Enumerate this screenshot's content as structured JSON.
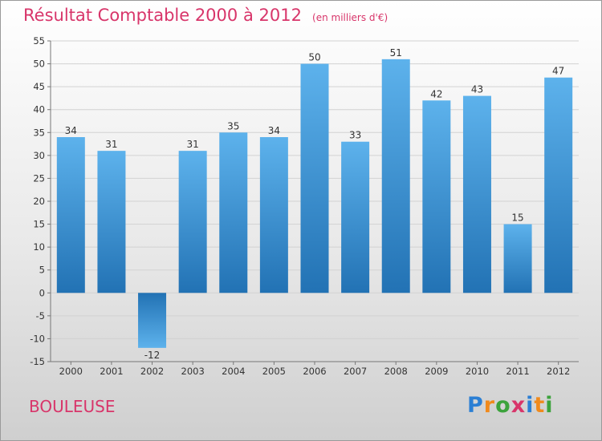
{
  "title": "Résultat Comptable 2000 à 2012",
  "unit": "(en milliers d'€)",
  "commune": "BOULEUSE",
  "logo": {
    "letters": [
      "P",
      "r",
      "o",
      "x",
      "i",
      "t",
      "i"
    ],
    "colors": [
      "#2b7fd4",
      "#f08a1c",
      "#3ca33c",
      "#d8356a",
      "#2b7fd4",
      "#f08a1c",
      "#3ca33c"
    ]
  },
  "colors": {
    "bar_top": "#5db2ec",
    "bar_bottom": "#2272b4",
    "accent": "#d8356a"
  },
  "chart_data": {
    "type": "bar",
    "title": "Résultat Comptable 2000 à 2012",
    "xlabel": "",
    "ylabel": "",
    "categories": [
      "2000",
      "2001",
      "2002",
      "2003",
      "2004",
      "2005",
      "2006",
      "2007",
      "2008",
      "2009",
      "2010",
      "2011",
      "2012"
    ],
    "values": [
      34,
      31,
      -12,
      31,
      35,
      34,
      50,
      33,
      51,
      42,
      43,
      15,
      47
    ],
    "ylim": [
      -15,
      55
    ],
    "yticks": [
      55,
      50,
      45,
      40,
      35,
      30,
      25,
      20,
      15,
      10,
      5,
      0,
      -5,
      -10,
      -15
    ],
    "grid": true
  }
}
